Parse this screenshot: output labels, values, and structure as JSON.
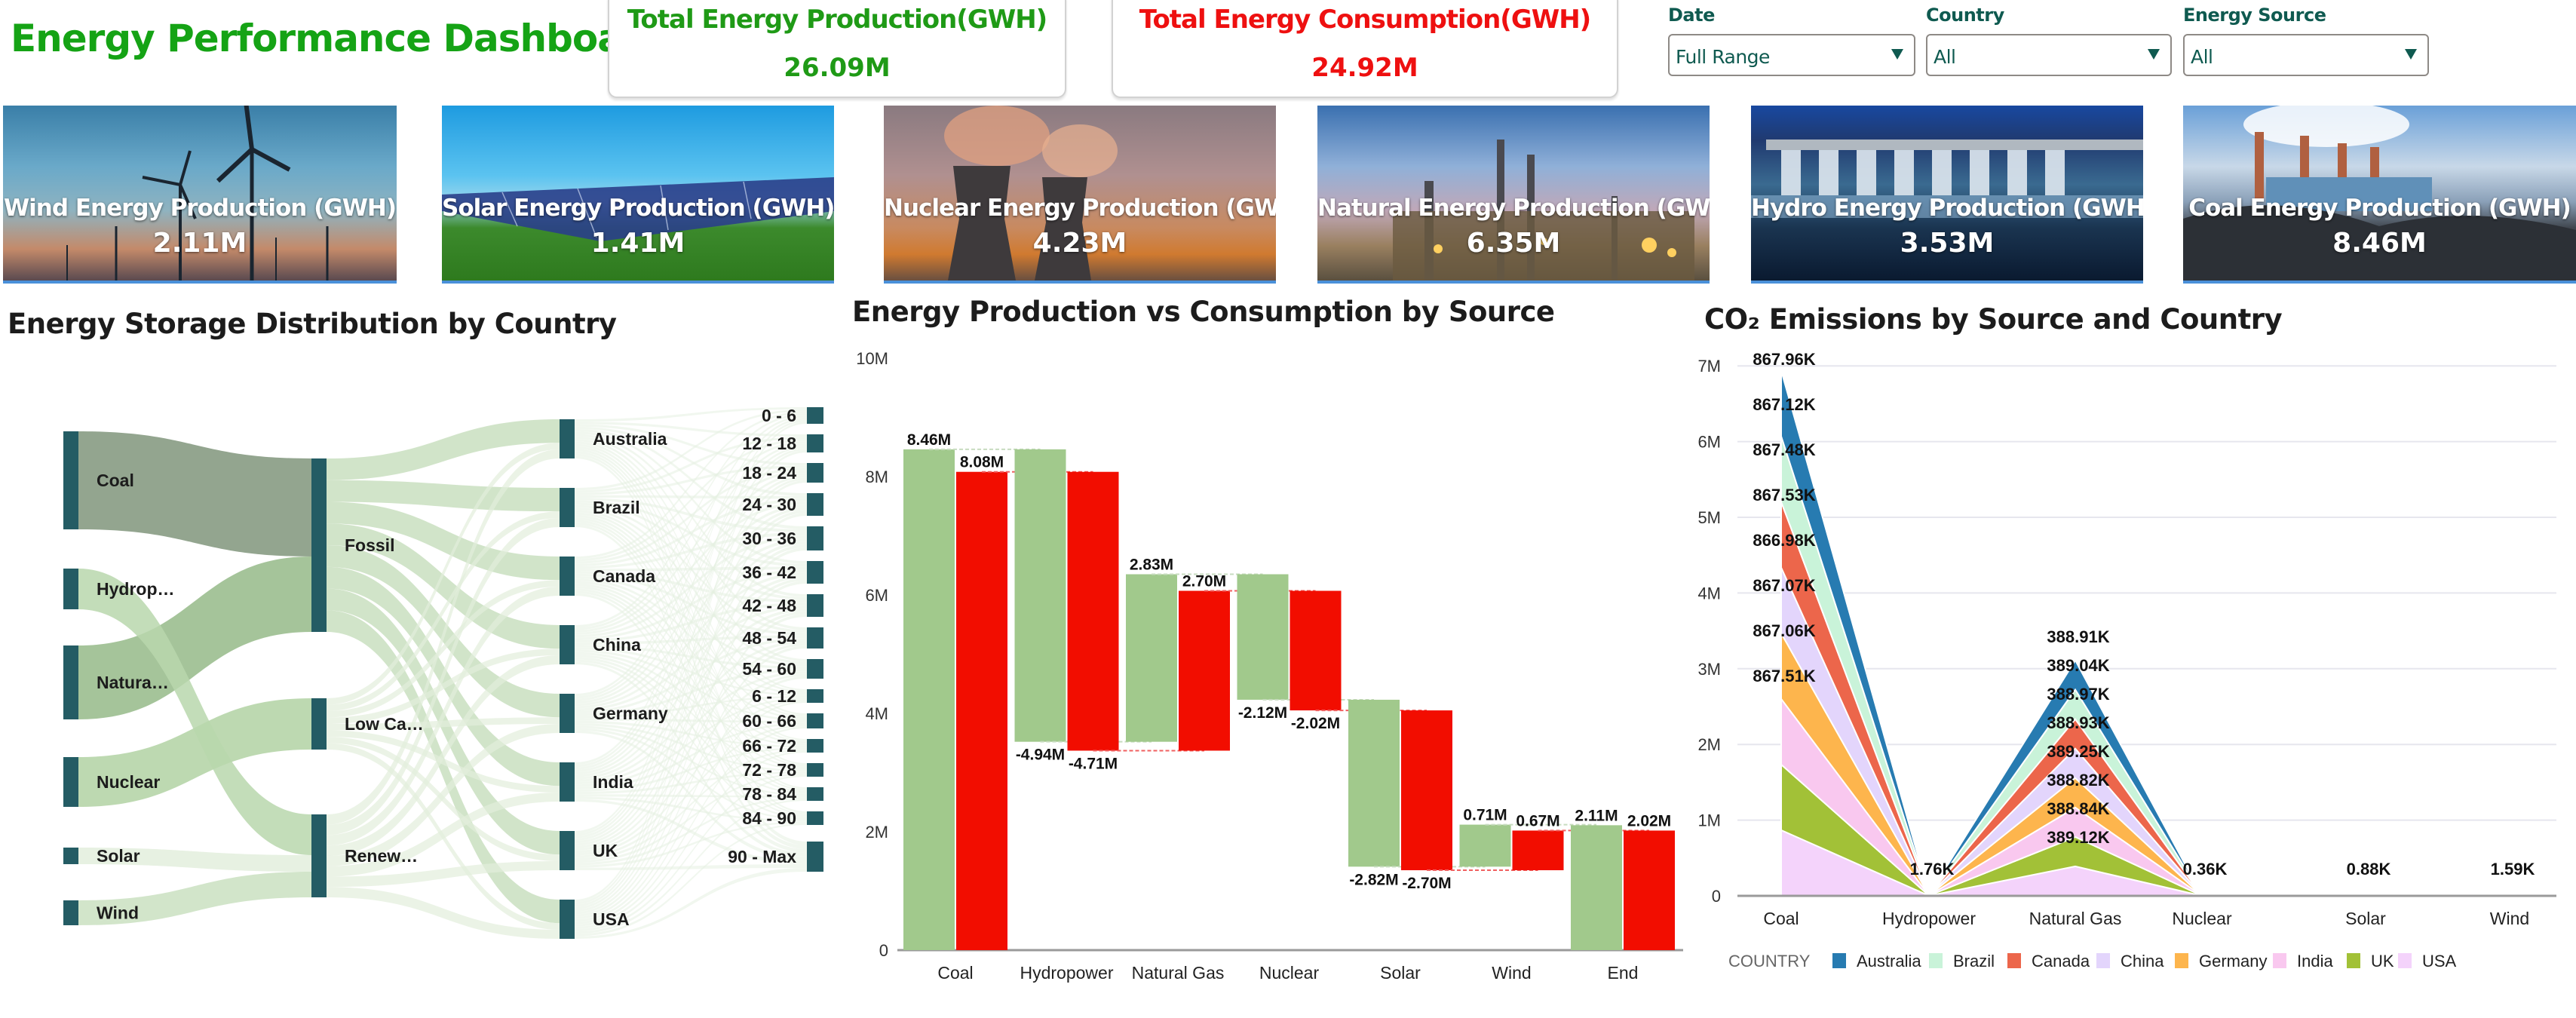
{
  "header": {
    "title": "Energy Performance Dashboard",
    "kpis": [
      {
        "label": "Total Energy Production(GWH)",
        "value": "26.09M",
        "color": "#1f9a16"
      },
      {
        "label": "Total Energy Consumption(GWH)",
        "value": "24.92M",
        "color": "#ee1010"
      }
    ],
    "filters": [
      {
        "label": "Date",
        "value": "Full Range"
      },
      {
        "label": "Country",
        "value": "All"
      },
      {
        "label": "Energy Source",
        "value": "All"
      }
    ]
  },
  "cards": [
    {
      "label": "Wind Energy Production (GWH)",
      "value": "2.11M",
      "image": "wind-turbines"
    },
    {
      "label": "Solar Energy Production (GWH)",
      "value": "1.41M",
      "image": "solar-panels"
    },
    {
      "label": "Nuclear Energy Production (GWH)",
      "value": "4.23M",
      "image": "nuclear-cooling-towers"
    },
    {
      "label": "Natural Energy Production (GWH)",
      "value": "6.35M",
      "image": "gas-power-plant"
    },
    {
      "label": "Hydro Energy Production (GWH)",
      "value": "3.53M",
      "image": "hydro-dam"
    },
    {
      "label": "Coal Energy Production (GWH)",
      "value": "8.46M",
      "image": "coal-power-plant"
    }
  ],
  "colors": {
    "production": "#a1c98c",
    "consumption": "#f20d00",
    "sankey_node": "#245c64",
    "sankey_link": "#b9d7ad"
  },
  "chart_data": [
    {
      "type": "sankey",
      "title": "Energy Storage Distribution by Country",
      "levels": [
        [
          "Coal",
          "Hydrop…",
          "Natura…",
          "Nuclear",
          "Solar",
          "Wind"
        ],
        [
          "Fossil",
          "Low Ca…",
          "Renew…"
        ],
        [
          "Australia",
          "Brazil",
          "Canada",
          "China",
          "Germany",
          "India",
          "UK",
          "USA"
        ],
        [
          "0 - 6",
          "12 - 18",
          "18 - 24",
          "24 - 30",
          "30 - 36",
          "36 - 42",
          "42 - 48",
          "48 - 54",
          "54 - 60",
          "6 - 12",
          "60 - 66",
          "66 - 72",
          "72 - 78",
          "78 - 84",
          "84 - 90",
          "90 - Max"
        ]
      ],
      "source_weights": {
        "Coal": 8.46,
        "Hydrop…": 3.53,
        "Natura…": 6.35,
        "Nuclear": 4.23,
        "Solar": 1.41,
        "Wind": 2.11
      },
      "links_level1": [
        {
          "from": "Coal",
          "to": "Fossil"
        },
        {
          "from": "Natura…",
          "to": "Fossil"
        },
        {
          "from": "Nuclear",
          "to": "Low Ca…"
        },
        {
          "from": "Hydrop…",
          "to": "Renew…"
        },
        {
          "from": "Solar",
          "to": "Renew…"
        },
        {
          "from": "Wind",
          "to": "Renew…"
        }
      ]
    },
    {
      "type": "waterfall",
      "title": "Energy Production vs Consumption by Source",
      "categories": [
        "Coal",
        "Hydropower",
        "Natural Gas",
        "Nuclear",
        "Solar",
        "Wind",
        "End"
      ],
      "ylim": [
        0,
        10000000
      ],
      "yticks": [
        "0",
        "2M",
        "4M",
        "6M",
        "8M",
        "10M"
      ],
      "ytick_values": [
        0,
        2,
        4,
        6,
        8,
        10
      ],
      "series": [
        {
          "name": "Production",
          "starts": [
            0,
            8.46,
            3.52,
            6.35,
            4.23,
            1.41,
            0
          ],
          "ends": [
            8.46,
            3.52,
            6.35,
            4.23,
            1.41,
            2.12,
            2.11
          ],
          "labels": [
            "8.46M",
            "-4.94M",
            "2.83M",
            "-2.12M",
            "-2.82M",
            "0.71M",
            "2.11M"
          ]
        },
        {
          "name": "Consumption",
          "starts": [
            0,
            8.08,
            3.37,
            6.07,
            4.05,
            1.35,
            0
          ],
          "ends": [
            8.08,
            3.37,
            6.07,
            4.05,
            1.35,
            2.02,
            2.02
          ],
          "labels": [
            "8.08M",
            "-4.71M",
            "2.70M",
            "-2.02M",
            "-2.70M",
            "0.67M",
            "2.02M"
          ]
        }
      ]
    },
    {
      "type": "area",
      "stacked": true,
      "title": "CO₂ Emissions by Source and Country",
      "categories": [
        "Coal",
        "Hydropower",
        "Natural Gas",
        "Nuclear",
        "Solar",
        "Wind"
      ],
      "ylim": [
        0,
        7000000
      ],
      "yticks": [
        "0",
        "1M",
        "2M",
        "3M",
        "4M",
        "5M",
        "6M",
        "7M"
      ],
      "ytick_values": [
        0,
        1,
        2,
        3,
        4,
        5,
        6,
        7
      ],
      "grid": true,
      "legend_title": "COUNTRY",
      "legend_position": "bottom",
      "series": [
        {
          "name": "USA",
          "color": "#f4d3fb",
          "values": [
            867.51,
            1.76,
            389.12,
            0.36,
            0.88,
            1.59
          ]
        },
        {
          "name": "UK",
          "color": "#a2c137",
          "values": [
            867.06,
            1.76,
            388.84,
            0.36,
            0.88,
            1.59
          ]
        },
        {
          "name": "India",
          "color": "#f9c8ef",
          "values": [
            867.07,
            1.76,
            388.82,
            0.36,
            0.88,
            1.59
          ]
        },
        {
          "name": "Germany",
          "color": "#fdb54d",
          "values": [
            866.98,
            1.76,
            389.25,
            0.36,
            0.88,
            1.59
          ]
        },
        {
          "name": "China",
          "color": "#e3d5fc",
          "values": [
            867.53,
            1.76,
            388.93,
            0.36,
            0.88,
            1.59
          ]
        },
        {
          "name": "Canada",
          "color": "#ec664b",
          "values": [
            867.48,
            1.76,
            388.97,
            0.36,
            0.88,
            1.59
          ]
        },
        {
          "name": "Brazil",
          "color": "#c9f3d9",
          "values": [
            867.12,
            1.76,
            389.04,
            0.36,
            0.88,
            1.59
          ]
        },
        {
          "name": "Australia",
          "color": "#277bb1",
          "values": [
            867.96,
            1.76,
            388.91,
            0.36,
            0.88,
            1.59
          ]
        }
      ],
      "value_unit": "K",
      "point_labels": {
        "Coal": [
          "867.96K",
          "867.12K",
          "867.48K",
          "867.53K",
          "866.98K",
          "867.07K",
          "867.06K",
          "867.51K"
        ],
        "Hydropower": [
          "1.76K"
        ],
        "Natural Gas": [
          "388.91K",
          "389.04K",
          "388.97K",
          "388.93K",
          "389.25K",
          "388.82K",
          "388.84K",
          "389.12K"
        ],
        "Nuclear": [
          "0.36K"
        ],
        "Solar": [
          "0.88K"
        ],
        "Wind": [
          "1.59K"
        ]
      },
      "legend": [
        "Australia",
        "Brazil",
        "Canada",
        "China",
        "Germany",
        "India",
        "UK",
        "USA"
      ]
    }
  ]
}
